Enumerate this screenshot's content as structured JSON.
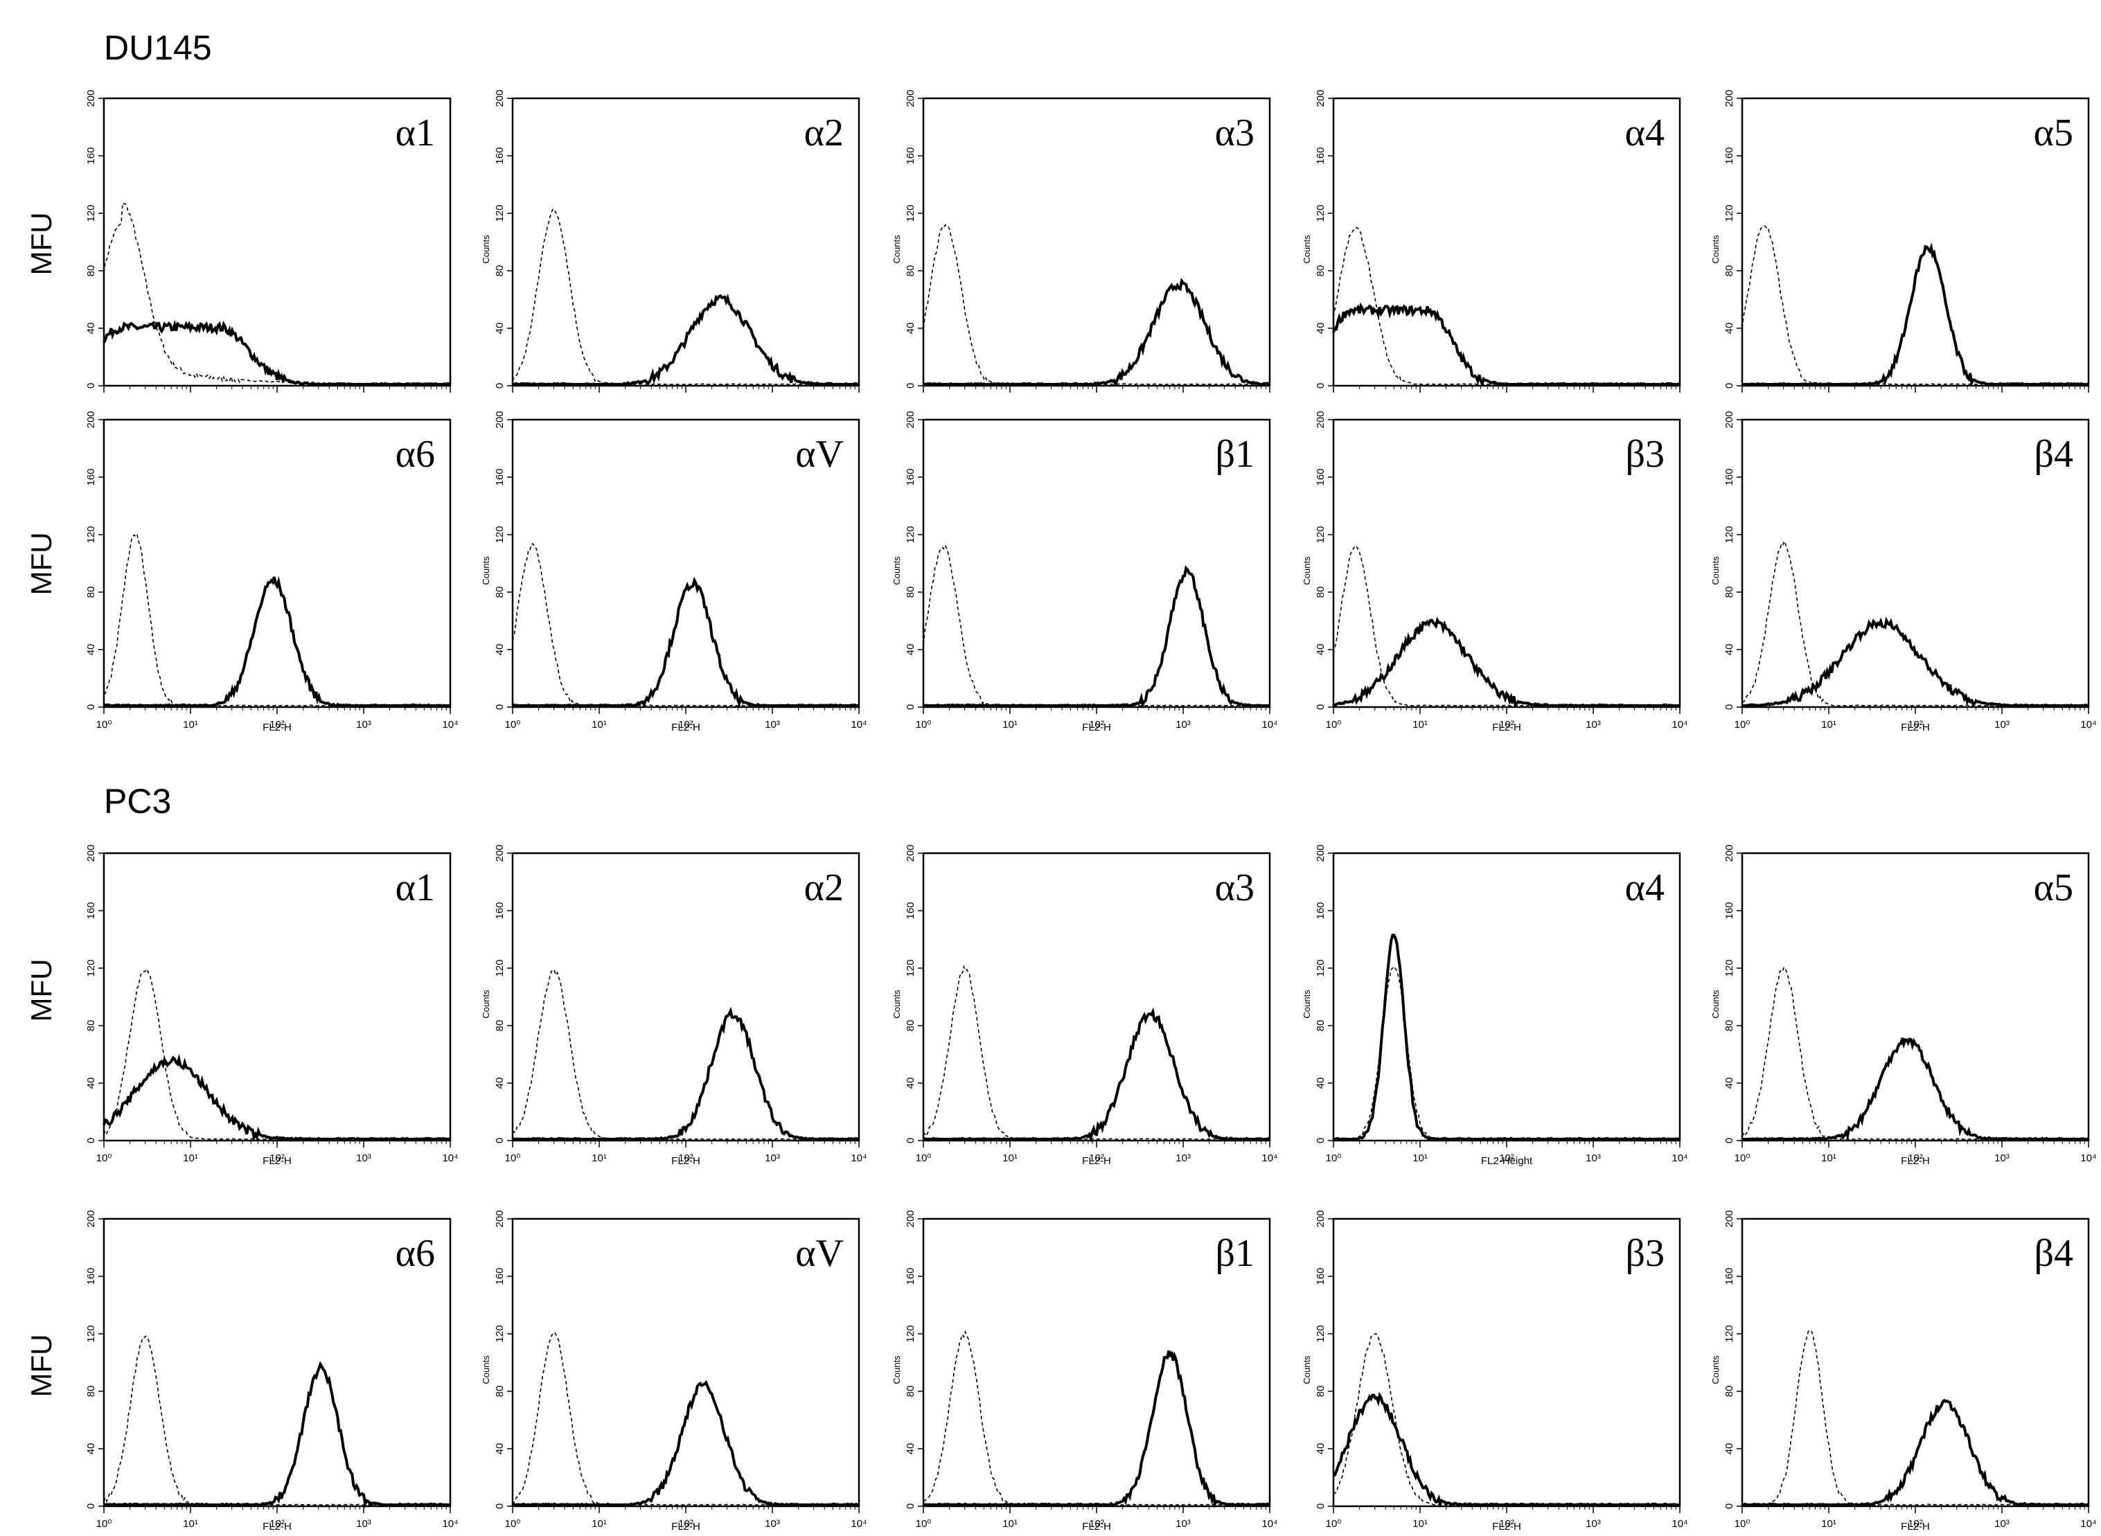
{
  "groups": [
    {
      "label": "DU145"
    },
    {
      "label": "PC3"
    }
  ],
  "y_axis_outer_label": "MFU",
  "chart_data": [
    {
      "group": "DU145",
      "panel": "α1",
      "type": "area",
      "xlabel": "",
      "ylabel": "",
      "xscale": "log",
      "xlim": [
        1,
        10000
      ],
      "ylim": [
        0,
        200
      ],
      "yticks": [
        0,
        40,
        80,
        120,
        160,
        200
      ],
      "xticks": [
        "10⁰",
        "10¹",
        "10²",
        "10³",
        "10⁴"
      ],
      "x_tick_labels_visible": false,
      "series": [
        {
          "style": "dashed",
          "peak_x": 1.6,
          "peak_y": 112,
          "width": 0.25,
          "tail": 0.15
        },
        {
          "style": "solid",
          "peak_x": 6,
          "peak_y": 40,
          "width": 0.5,
          "plateau": true
        }
      ]
    },
    {
      "group": "DU145",
      "panel": "α2",
      "type": "area",
      "xlabel": "",
      "ylabel": "Counts",
      "xscale": "log",
      "xlim": [
        1,
        10000
      ],
      "ylim": [
        0,
        200
      ],
      "yticks": [
        0,
        40,
        80,
        120,
        160,
        200
      ],
      "xticks": [
        "10⁰",
        "10¹",
        "10²",
        "10³",
        "10⁴"
      ],
      "x_tick_labels_visible": false,
      "series": [
        {
          "style": "dashed",
          "peak_x": 3,
          "peak_y": 122,
          "width": 0.18
        },
        {
          "style": "solid",
          "peak_x": 250,
          "peak_y": 60,
          "width": 0.35
        }
      ]
    },
    {
      "group": "DU145",
      "panel": "α3",
      "type": "area",
      "xlabel": "",
      "ylabel": "Counts",
      "xscale": "log",
      "xlim": [
        1,
        10000
      ],
      "ylim": [
        0,
        200
      ],
      "yticks": [
        0,
        40,
        80,
        120,
        160,
        200
      ],
      "xticks": [
        "10⁰",
        "10¹",
        "10²",
        "10³",
        "10⁴"
      ],
      "x_tick_labels_visible": false,
      "series": [
        {
          "style": "dashed",
          "peak_x": 1.8,
          "peak_y": 112,
          "width": 0.18
        },
        {
          "style": "solid",
          "peak_x": 900,
          "peak_y": 70,
          "width": 0.3
        }
      ]
    },
    {
      "group": "DU145",
      "panel": "α4",
      "type": "area",
      "xlabel": "",
      "ylabel": "Counts",
      "xscale": "log",
      "xlim": [
        1,
        10000
      ],
      "ylim": [
        0,
        200
      ],
      "yticks": [
        0,
        40,
        80,
        120,
        160,
        200
      ],
      "xticks": [
        "10⁰",
        "10¹",
        "10²",
        "10³",
        "10⁴"
      ],
      "x_tick_labels_visible": false,
      "series": [
        {
          "style": "dashed",
          "peak_x": 1.8,
          "peak_y": 110,
          "width": 0.2
        },
        {
          "style": "solid",
          "peak_x": 4.5,
          "peak_y": 52,
          "width": 0.4,
          "plateau": true
        }
      ]
    },
    {
      "group": "DU145",
      "panel": "α5",
      "type": "area",
      "xlabel": "",
      "ylabel": "Counts",
      "xscale": "log",
      "xlim": [
        1,
        10000
      ],
      "ylim": [
        0,
        200
      ],
      "yticks": [
        0,
        40,
        80,
        120,
        160,
        200
      ],
      "xticks": [
        "10⁰",
        "10¹",
        "10²",
        "10³",
        "10⁴"
      ],
      "x_tick_labels_visible": false,
      "series": [
        {
          "style": "dashed",
          "peak_x": 1.8,
          "peak_y": 112,
          "width": 0.18
        },
        {
          "style": "solid",
          "peak_x": 140,
          "peak_y": 96,
          "width": 0.2
        }
      ]
    },
    {
      "group": "DU145",
      "panel": "α6",
      "type": "area",
      "xlabel": "FL2-H",
      "ylabel": "",
      "xscale": "log",
      "xlim": [
        1,
        10000
      ],
      "ylim": [
        0,
        200
      ],
      "yticks": [
        0,
        40,
        80,
        120,
        160,
        200
      ],
      "xticks": [
        "10⁰",
        "10¹",
        "10²",
        "10³",
        "10⁴"
      ],
      "x_tick_labels_visible": true,
      "series": [
        {
          "style": "dashed",
          "peak_x": 2.3,
          "peak_y": 120,
          "width": 0.15
        },
        {
          "style": "solid",
          "peak_x": 90,
          "peak_y": 88,
          "width": 0.22
        }
      ]
    },
    {
      "group": "DU145",
      "panel": "αV",
      "type": "area",
      "xlabel": "FL2-H",
      "ylabel": "Counts",
      "xscale": "log",
      "xlim": [
        1,
        10000
      ],
      "ylim": [
        0,
        200
      ],
      "yticks": [
        0,
        40,
        80,
        120,
        160,
        200
      ],
      "xticks": [
        "10⁰",
        "10¹",
        "10²",
        "10³",
        "10⁴"
      ],
      "x_tick_labels_visible": true,
      "series": [
        {
          "style": "dashed",
          "peak_x": 1.7,
          "peak_y": 112,
          "width": 0.17
        },
        {
          "style": "solid",
          "peak_x": 120,
          "peak_y": 86,
          "width": 0.22
        }
      ]
    },
    {
      "group": "DU145",
      "panel": "β1",
      "type": "area",
      "xlabel": "FL2-H",
      "ylabel": "Counts",
      "xscale": "log",
      "xlim": [
        1,
        10000
      ],
      "ylim": [
        0,
        200
      ],
      "yticks": [
        0,
        40,
        80,
        120,
        160,
        200
      ],
      "xticks": [
        "10⁰",
        "10¹",
        "10²",
        "10³",
        "10⁴"
      ],
      "x_tick_labels_visible": true,
      "series": [
        {
          "style": "dashed",
          "peak_x": 1.7,
          "peak_y": 112,
          "width": 0.17
        },
        {
          "style": "solid",
          "peak_x": 1100,
          "peak_y": 94,
          "width": 0.2
        }
      ]
    },
    {
      "group": "DU145",
      "panel": "β3",
      "type": "area",
      "xlabel": "FL2-H",
      "ylabel": "Counts",
      "xscale": "log",
      "xlim": [
        1,
        10000
      ],
      "ylim": [
        0,
        200
      ],
      "yticks": [
        0,
        40,
        80,
        120,
        160,
        200
      ],
      "xticks": [
        "10⁰",
        "10¹",
        "10²",
        "10³",
        "10⁴"
      ],
      "x_tick_labels_visible": true,
      "series": [
        {
          "style": "dashed",
          "peak_x": 1.8,
          "peak_y": 112,
          "width": 0.17
        },
        {
          "style": "solid",
          "peak_x": 14,
          "peak_y": 58,
          "width": 0.4
        }
      ]
    },
    {
      "group": "DU145",
      "panel": "β4",
      "type": "area",
      "xlabel": "FL2-H",
      "ylabel": "Counts",
      "xscale": "log",
      "xlim": [
        1,
        10000
      ],
      "ylim": [
        0,
        200
      ],
      "yticks": [
        0,
        40,
        80,
        120,
        160,
        200
      ],
      "xticks": [
        "10⁰",
        "10¹",
        "10²",
        "10³",
        "10⁴"
      ],
      "x_tick_labels_visible": true,
      "series": [
        {
          "style": "dashed",
          "peak_x": 3,
          "peak_y": 114,
          "width": 0.17
        },
        {
          "style": "solid",
          "peak_x": 40,
          "peak_y": 58,
          "width": 0.45
        }
      ]
    },
    {
      "group": "PC3",
      "panel": "α1",
      "type": "area",
      "xlabel": "FL2-H",
      "ylabel": "",
      "xscale": "log",
      "xlim": [
        1,
        10000
      ],
      "ylim": [
        0,
        200
      ],
      "yticks": [
        0,
        40,
        80,
        120,
        160,
        200
      ],
      "xticks": [
        "10⁰",
        "10¹",
        "10²",
        "10³",
        "10⁴"
      ],
      "x_tick_labels_visible": true,
      "series": [
        {
          "style": "dashed",
          "peak_x": 3,
          "peak_y": 120,
          "width": 0.18
        },
        {
          "style": "solid",
          "peak_x": 6,
          "peak_y": 55,
          "width": 0.42
        }
      ]
    },
    {
      "group": "PC3",
      "panel": "α2",
      "type": "area",
      "xlabel": "FL2-H",
      "ylabel": "Counts",
      "xscale": "log",
      "xlim": [
        1,
        10000
      ],
      "ylim": [
        0,
        200
      ],
      "yticks": [
        0,
        40,
        80,
        120,
        160,
        200
      ],
      "xticks": [
        "10⁰",
        "10¹",
        "10²",
        "10³",
        "10⁴"
      ],
      "x_tick_labels_visible": true,
      "series": [
        {
          "style": "dashed",
          "peak_x": 3,
          "peak_y": 118,
          "width": 0.18
        },
        {
          "style": "solid",
          "peak_x": 350,
          "peak_y": 88,
          "width": 0.25
        }
      ]
    },
    {
      "group": "PC3",
      "panel": "α3",
      "type": "area",
      "xlabel": "FL2-H",
      "ylabel": "Counts",
      "xscale": "log",
      "xlim": [
        1,
        10000
      ],
      "ylim": [
        0,
        200
      ],
      "yticks": [
        0,
        40,
        80,
        120,
        160,
        200
      ],
      "xticks": [
        "10⁰",
        "10¹",
        "10²",
        "10³",
        "10⁴"
      ],
      "x_tick_labels_visible": true,
      "series": [
        {
          "style": "dashed",
          "peak_x": 3,
          "peak_y": 120,
          "width": 0.17
        },
        {
          "style": "solid",
          "peak_x": 420,
          "peak_y": 88,
          "width": 0.27
        }
      ]
    },
    {
      "group": "PC3",
      "panel": "α4",
      "type": "area",
      "xlabel": "FL2-Height",
      "ylabel": "Counts",
      "xscale": "log",
      "xlim": [
        1,
        10000
      ],
      "ylim": [
        0,
        200
      ],
      "yticks": [
        0,
        40,
        80,
        120,
        160,
        200
      ],
      "xticks": [
        "10⁰",
        "10¹",
        "10²",
        "10³",
        "10⁴"
      ],
      "x_tick_labels_visible": true,
      "series": [
        {
          "style": "dashed",
          "peak_x": 5,
          "peak_y": 122,
          "width": 0.14
        },
        {
          "style": "solid",
          "peak_x": 5,
          "peak_y": 142,
          "width": 0.12
        }
      ]
    },
    {
      "group": "PC3",
      "panel": "α5",
      "type": "area",
      "xlabel": "FL2-H",
      "ylabel": "Counts",
      "xscale": "log",
      "xlim": [
        1,
        10000
      ],
      "ylim": [
        0,
        200
      ],
      "yticks": [
        0,
        40,
        80,
        120,
        160,
        200
      ],
      "xticks": [
        "10⁰",
        "10¹",
        "10²",
        "10³",
        "10⁴"
      ],
      "x_tick_labels_visible": true,
      "series": [
        {
          "style": "dashed",
          "peak_x": 3,
          "peak_y": 120,
          "width": 0.17
        },
        {
          "style": "solid",
          "peak_x": 80,
          "peak_y": 70,
          "width": 0.3
        }
      ]
    },
    {
      "group": "PC3",
      "panel": "α6",
      "type": "area",
      "xlabel": "FL2-H",
      "ylabel": "",
      "xscale": "log",
      "xlim": [
        1,
        10000
      ],
      "ylim": [
        0,
        200
      ],
      "yticks": [
        0,
        40,
        80,
        120,
        160,
        200
      ],
      "xticks": [
        "10⁰",
        "10¹",
        "10²",
        "10³",
        "10⁴"
      ],
      "x_tick_labels_visible": true,
      "series": [
        {
          "style": "dashed",
          "peak_x": 3,
          "peak_y": 118,
          "width": 0.17
        },
        {
          "style": "solid",
          "peak_x": 320,
          "peak_y": 96,
          "width": 0.2
        }
      ]
    },
    {
      "group": "PC3",
      "panel": "αV",
      "type": "area",
      "xlabel": "FL2-H",
      "ylabel": "Counts",
      "xscale": "log",
      "xlim": [
        1,
        10000
      ],
      "ylim": [
        0,
        200
      ],
      "yticks": [
        0,
        40,
        80,
        120,
        160,
        200
      ],
      "xticks": [
        "10⁰",
        "10¹",
        "10²",
        "10³",
        "10⁴"
      ],
      "x_tick_labels_visible": true,
      "series": [
        {
          "style": "dashed",
          "peak_x": 3,
          "peak_y": 120,
          "width": 0.17
        },
        {
          "style": "solid",
          "peak_x": 160,
          "peak_y": 84,
          "width": 0.25
        }
      ]
    },
    {
      "group": "PC3",
      "panel": "β1",
      "type": "area",
      "xlabel": "FL2-H",
      "ylabel": "Counts",
      "xscale": "log",
      "xlim": [
        1,
        10000
      ],
      "ylim": [
        0,
        200
      ],
      "yticks": [
        0,
        40,
        80,
        120,
        160,
        200
      ],
      "xticks": [
        "10⁰",
        "10¹",
        "10²",
        "10³",
        "10⁴"
      ],
      "x_tick_labels_visible": true,
      "series": [
        {
          "style": "dashed",
          "peak_x": 3,
          "peak_y": 120,
          "width": 0.17
        },
        {
          "style": "solid",
          "peak_x": 700,
          "peak_y": 106,
          "width": 0.2
        }
      ]
    },
    {
      "group": "PC3",
      "panel": "β3",
      "type": "area",
      "xlabel": "FL2-H",
      "ylabel": "Counts",
      "xscale": "log",
      "xlim": [
        1,
        10000
      ],
      "ylim": [
        0,
        200
      ],
      "yticks": [
        0,
        40,
        80,
        120,
        160,
        200
      ],
      "xticks": [
        "10⁰",
        "10¹",
        "10²",
        "10³",
        "10⁴"
      ],
      "x_tick_labels_visible": true,
      "series": [
        {
          "style": "dashed",
          "peak_x": 3,
          "peak_y": 120,
          "width": 0.2
        },
        {
          "style": "solid",
          "peak_x": 3,
          "peak_y": 76,
          "width": 0.3
        }
      ]
    },
    {
      "group": "PC3",
      "panel": "β4",
      "type": "area",
      "xlabel": "FL2-H",
      "ylabel": "Counts",
      "xscale": "log",
      "xlim": [
        1,
        10000
      ],
      "ylim": [
        0,
        200
      ],
      "yticks": [
        0,
        40,
        80,
        120,
        160,
        200
      ],
      "xticks": [
        "10⁰",
        "10¹",
        "10²",
        "10³",
        "10⁴"
      ],
      "x_tick_labels_visible": true,
      "series": [
        {
          "style": "dashed",
          "peak_x": 6,
          "peak_y": 122,
          "width": 0.15
        },
        {
          "style": "solid",
          "peak_x": 220,
          "peak_y": 72,
          "width": 0.28
        }
      ]
    }
  ]
}
